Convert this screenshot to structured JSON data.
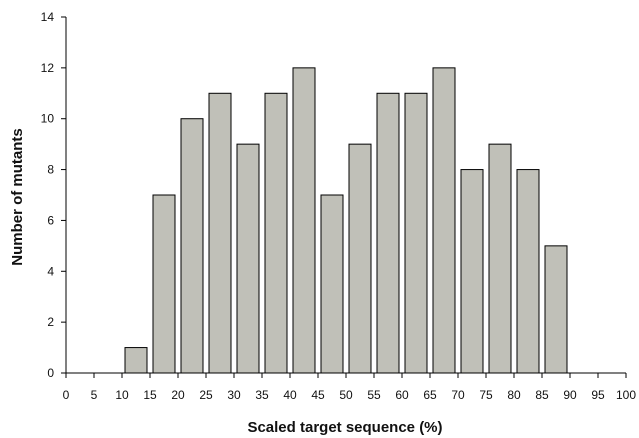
{
  "chart_data": {
    "type": "bar",
    "title": "",
    "xlabel": "Scaled target sequence (%)",
    "ylabel": "Number of mutants",
    "xlim": [
      0,
      100
    ],
    "ylim": [
      0,
      14
    ],
    "x_ticks": [
      0,
      5,
      10,
      15,
      20,
      25,
      30,
      35,
      40,
      45,
      50,
      55,
      60,
      65,
      70,
      75,
      80,
      85,
      90,
      95,
      100
    ],
    "y_ticks": [
      0,
      2,
      4,
      6,
      8,
      10,
      12,
      14
    ],
    "bin_width": 5,
    "bins": [
      {
        "from": 10,
        "to": 15,
        "value": 1
      },
      {
        "from": 15,
        "to": 20,
        "value": 7
      },
      {
        "from": 20,
        "to": 25,
        "value": 10
      },
      {
        "from": 25,
        "to": 30,
        "value": 11
      },
      {
        "from": 30,
        "to": 35,
        "value": 9
      },
      {
        "from": 35,
        "to": 40,
        "value": 11
      },
      {
        "from": 40,
        "to": 45,
        "value": 12
      },
      {
        "from": 45,
        "to": 50,
        "value": 7
      },
      {
        "from": 50,
        "to": 55,
        "value": 9
      },
      {
        "from": 55,
        "to": 60,
        "value": 11
      },
      {
        "from": 60,
        "to": 65,
        "value": 11
      },
      {
        "from": 65,
        "to": 70,
        "value": 12
      },
      {
        "from": 70,
        "to": 75,
        "value": 8
      },
      {
        "from": 75,
        "to": 80,
        "value": 9
      },
      {
        "from": 80,
        "to": 85,
        "value": 8
      },
      {
        "from": 85,
        "to": 90,
        "value": 5
      }
    ],
    "bar_color": "#c0c0b8",
    "bar_edge_color": "#000000",
    "grid": false,
    "legend": "none"
  }
}
